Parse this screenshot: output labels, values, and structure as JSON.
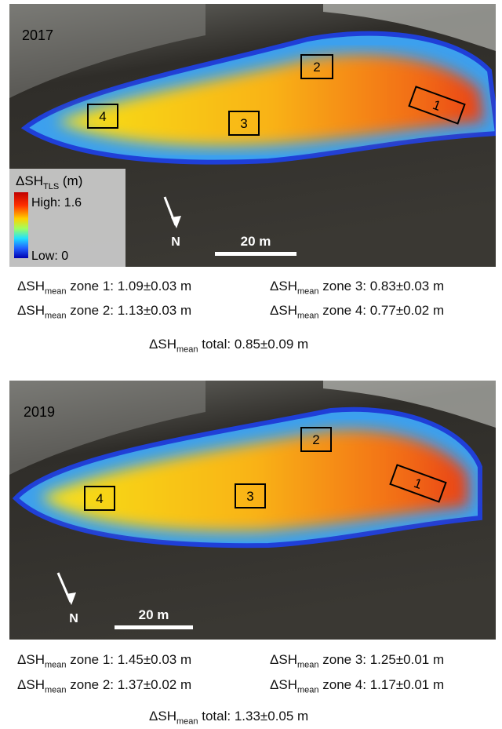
{
  "legend": {
    "symbol": "ΔSH",
    "subscript": "TLS",
    "unit": " (m)",
    "high": "High: 1.6",
    "low": "Low: 0"
  },
  "panels": [
    {
      "year": "2017",
      "zones": [
        "1",
        "2",
        "3",
        "4"
      ],
      "north": "N",
      "scale_bar": "20 m",
      "stats": [
        {
          "symbol": "ΔSH",
          "subscript": "mean",
          "text": " zone 1: 1.09±0.03 m"
        },
        {
          "symbol": "ΔSH",
          "subscript": "mean",
          "text": " zone 3: 0.83±0.03 m"
        },
        {
          "symbol": "ΔSH",
          "subscript": "mean",
          "text": " zone 2: 1.13±0.03 m"
        },
        {
          "symbol": "ΔSH",
          "subscript": "mean",
          "text": " zone 4: 0.77±0.02 m"
        }
      ],
      "total": {
        "symbol": "ΔSH",
        "subscript": "mean",
        "text": " total: 0.85±0.09 m"
      }
    },
    {
      "year": "2019",
      "zones": [
        "1",
        "2",
        "3",
        "4"
      ],
      "north": "N",
      "scale_bar": "20 m",
      "stats": [
        {
          "symbol": "ΔSH",
          "subscript": "mean",
          "text": " zone 1: 1.45±0.03 m"
        },
        {
          "symbol": "ΔSH",
          "subscript": "mean",
          "text": " zone 3: 1.25±0.01 m"
        },
        {
          "symbol": "ΔSH",
          "subscript": "mean",
          "text": " zone 2: 1.37±0.02 m"
        },
        {
          "symbol": "ΔSH",
          "subscript": "mean",
          "text": " zone 4: 1.17±0.01 m"
        }
      ],
      "total": {
        "symbol": "ΔSH",
        "subscript": "mean",
        "text": " total: 1.33±0.05 m"
      }
    }
  ]
}
